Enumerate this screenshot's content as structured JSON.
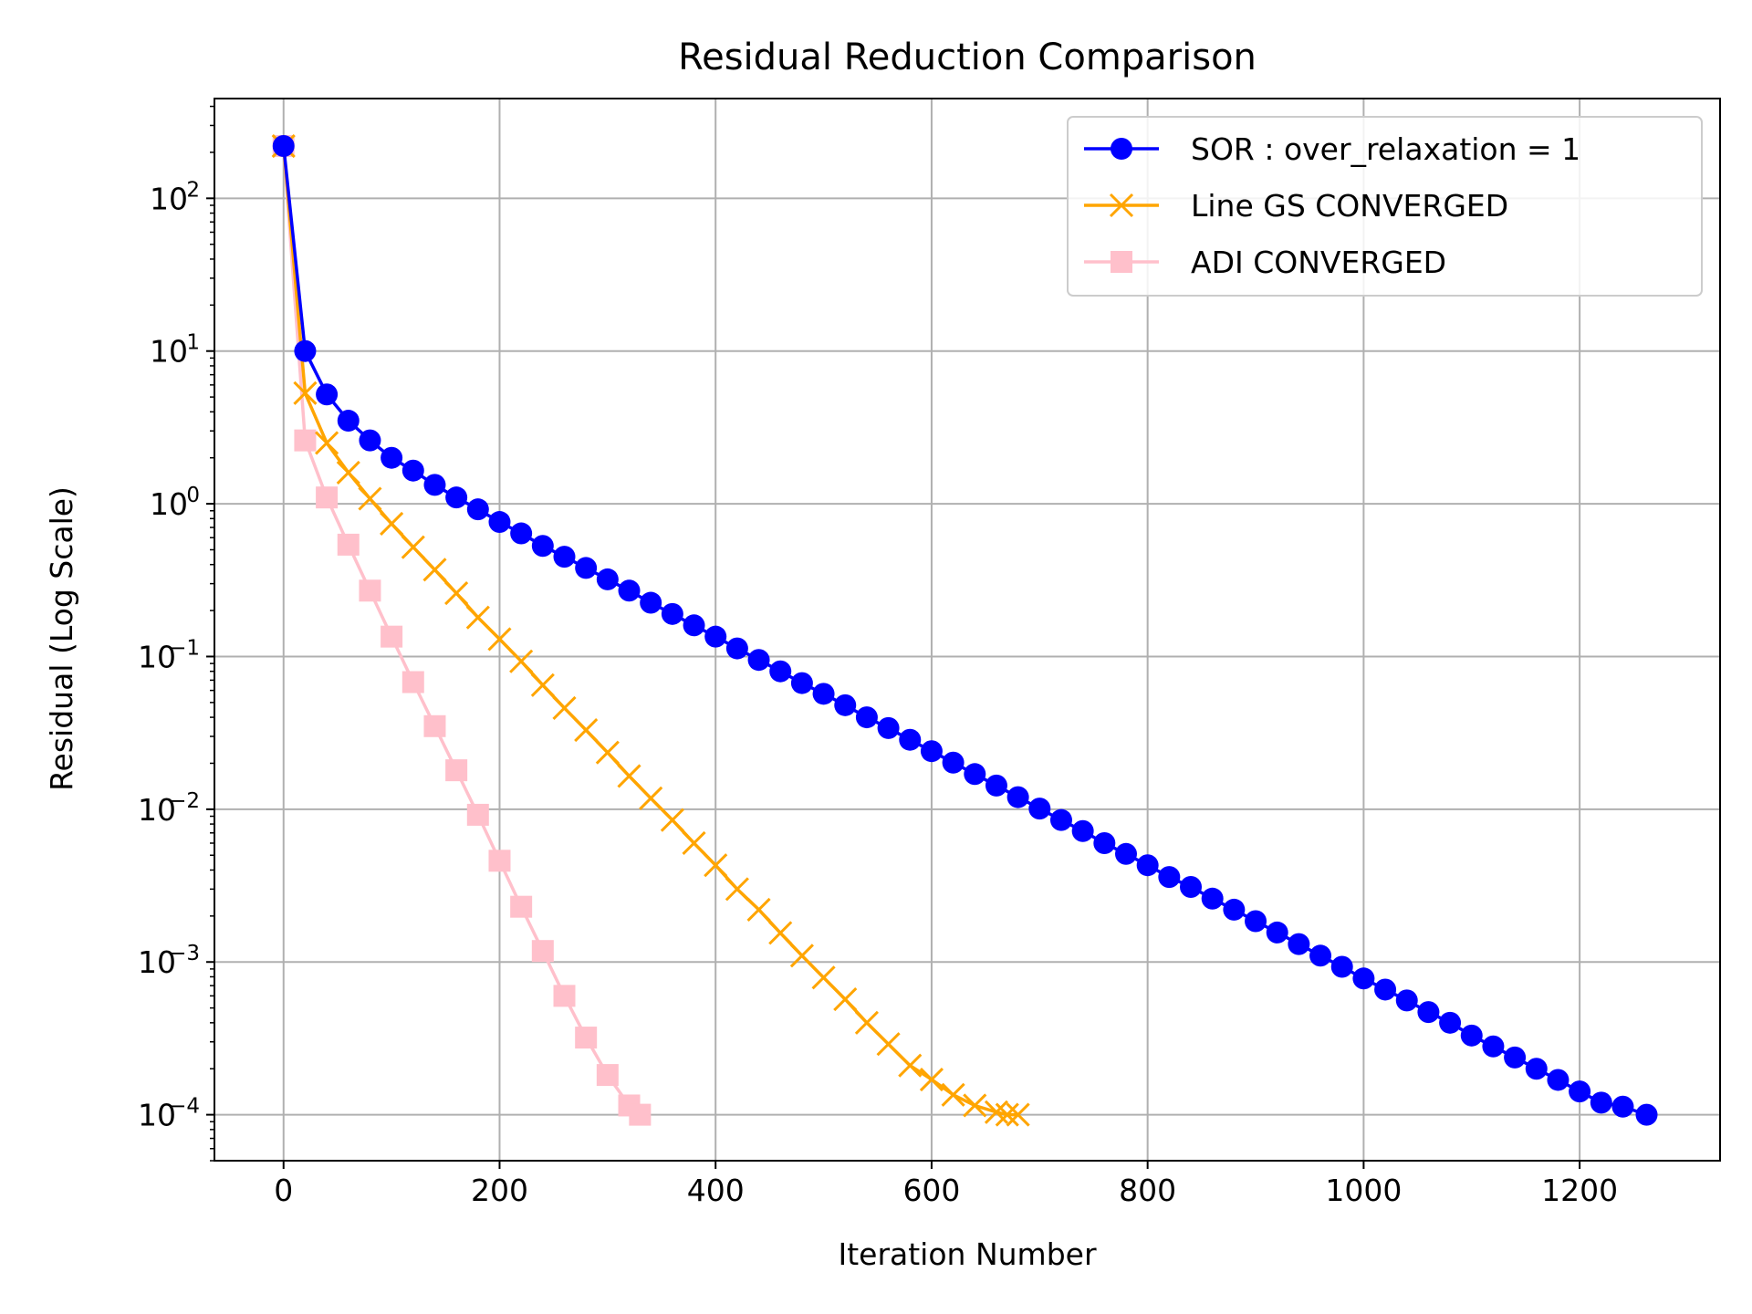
{
  "chart_data": {
    "type": "line",
    "title": "Residual Reduction Comparison",
    "xlabel": "Iteration Number",
    "ylabel": "Residual (Log Scale)",
    "xlim": [
      -64,
      1330
    ],
    "ylim": [
      5e-05,
      450
    ],
    "yscale": "log",
    "grid": true,
    "legend_position": "top-right",
    "xticks": [
      0,
      200,
      400,
      600,
      800,
      1000,
      1200
    ],
    "xtick_labels": [
      "0",
      "200",
      "400",
      "600",
      "800",
      "1000",
      "1200"
    ],
    "yticks": [
      {
        "value": 100,
        "base": "10",
        "exp": "2"
      },
      {
        "value": 10,
        "base": "10",
        "exp": "1"
      },
      {
        "value": 1,
        "base": "10",
        "exp": "0"
      },
      {
        "value": 0.1,
        "base": "10",
        "exp": "−1"
      },
      {
        "value": 0.01,
        "base": "10",
        "exp": "−2"
      },
      {
        "value": 0.001,
        "base": "10",
        "exp": "−3"
      },
      {
        "value": 0.0001,
        "base": "10",
        "exp": "−4"
      }
    ],
    "series": [
      {
        "name": "SOR : over_relaxation = 1",
        "color": "#0000ff",
        "marker": "circle",
        "x": [
          0,
          20,
          40,
          60,
          80,
          100,
          120,
          140,
          160,
          180,
          200,
          220,
          240,
          260,
          280,
          300,
          320,
          340,
          360,
          380,
          400,
          420,
          440,
          460,
          480,
          500,
          520,
          540,
          560,
          580,
          600,
          620,
          640,
          660,
          680,
          700,
          720,
          740,
          760,
          780,
          800,
          820,
          840,
          860,
          880,
          900,
          920,
          940,
          960,
          980,
          1000,
          1020,
          1040,
          1060,
          1080,
          1100,
          1120,
          1140,
          1160,
          1180,
          1200,
          1220,
          1240,
          1262
        ],
        "y": [
          220,
          10,
          5.2,
          3.5,
          2.6,
          2.0,
          1.65,
          1.33,
          1.1,
          0.92,
          0.76,
          0.64,
          0.53,
          0.45,
          0.38,
          0.32,
          0.27,
          0.225,
          0.19,
          0.16,
          0.135,
          0.113,
          0.095,
          0.08,
          0.067,
          0.057,
          0.048,
          0.04,
          0.034,
          0.0285,
          0.024,
          0.0202,
          0.017,
          0.0143,
          0.012,
          0.0101,
          0.0085,
          0.0072,
          0.006,
          0.0051,
          0.0043,
          0.0036,
          0.0031,
          0.0026,
          0.0022,
          0.00185,
          0.00156,
          0.00131,
          0.0011,
          0.00093,
          0.00078,
          0.00066,
          0.00056,
          0.00047,
          0.0004,
          0.00033,
          0.00028,
          0.000237,
          0.0002,
          0.000169,
          0.000142,
          0.00012,
          0.000113,
          0.0001
        ]
      },
      {
        "name": "Line GS CONVERGED",
        "color": "#ffa500",
        "marker": "x",
        "x": [
          0,
          20,
          40,
          60,
          80,
          100,
          120,
          140,
          160,
          180,
          200,
          220,
          240,
          260,
          280,
          300,
          320,
          340,
          360,
          380,
          400,
          420,
          440,
          460,
          480,
          500,
          520,
          540,
          560,
          580,
          600,
          620,
          640,
          660,
          670,
          680
        ],
        "y": [
          220,
          5.3,
          2.5,
          1.6,
          1.08,
          0.74,
          0.52,
          0.37,
          0.26,
          0.18,
          0.13,
          0.093,
          0.065,
          0.046,
          0.033,
          0.0235,
          0.0165,
          0.0118,
          0.0085,
          0.006,
          0.0043,
          0.003,
          0.0022,
          0.00155,
          0.0011,
          0.00079,
          0.00057,
          0.0004,
          0.00029,
          0.00021,
          0.00017,
          0.000135,
          0.000115,
          0.000104,
          0.0001,
          0.0001
        ]
      },
      {
        "name": "ADI CONVERGED",
        "color": "#ffc0cb",
        "marker": "square",
        "x": [
          0,
          20,
          40,
          60,
          80,
          100,
          120,
          140,
          160,
          180,
          200,
          220,
          240,
          260,
          280,
          300,
          320,
          330
        ],
        "y": [
          220,
          2.6,
          1.1,
          0.54,
          0.27,
          0.135,
          0.068,
          0.035,
          0.018,
          0.0092,
          0.0046,
          0.0023,
          0.00118,
          0.0006,
          0.00032,
          0.000182,
          0.000115,
          0.0001
        ]
      }
    ]
  }
}
